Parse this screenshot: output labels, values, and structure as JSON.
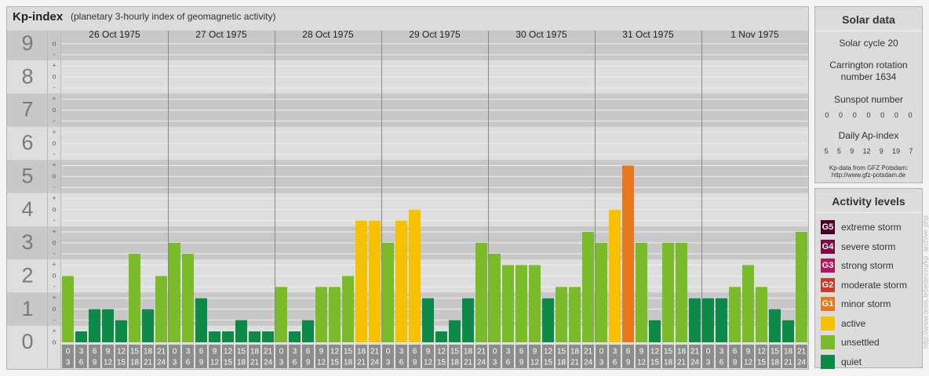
{
  "chart_data": {
    "type": "bar",
    "title": "Kp-index",
    "subtitle": "(planetary 3-hourly index of geomagnetic activity)",
    "ylim": [
      0,
      9.4
    ],
    "yticks": [
      0,
      1,
      2,
      3,
      4,
      5,
      6,
      7,
      8,
      9
    ],
    "yticks_minor": [
      {
        "value": 0,
        "label": "o"
      },
      {
        "value": 0.33,
        "label": "+"
      },
      {
        "value": 0.67,
        "label": "-"
      },
      {
        "value": 1,
        "label": "o"
      },
      {
        "value": 1.33,
        "label": "+"
      },
      {
        "value": 1.67,
        "label": "-"
      },
      {
        "value": 2,
        "label": "o"
      },
      {
        "value": 2.33,
        "label": "+"
      },
      {
        "value": 2.67,
        "label": "-"
      },
      {
        "value": 3,
        "label": "o"
      },
      {
        "value": 3.33,
        "label": "+"
      },
      {
        "value": 3.67,
        "label": "-"
      },
      {
        "value": 4,
        "label": "o"
      },
      {
        "value": 4.33,
        "label": "+"
      },
      {
        "value": 4.67,
        "label": "-"
      },
      {
        "value": 5,
        "label": "o"
      },
      {
        "value": 5.33,
        "label": "+"
      },
      {
        "value": 5.67,
        "label": "-"
      },
      {
        "value": 6,
        "label": "o"
      },
      {
        "value": 6.33,
        "label": "+"
      },
      {
        "value": 6.67,
        "label": "-"
      },
      {
        "value": 7,
        "label": "o"
      },
      {
        "value": 7.33,
        "label": "+"
      },
      {
        "value": 7.67,
        "label": "-"
      },
      {
        "value": 8,
        "label": "o"
      },
      {
        "value": 8.33,
        "label": "+"
      },
      {
        "value": 8.67,
        "label": "-"
      },
      {
        "value": 9,
        "label": "o"
      }
    ],
    "grid": true,
    "hours_from": [
      0,
      3,
      6,
      9,
      12,
      15,
      18,
      21
    ],
    "hours_to": [
      3,
      6,
      9,
      12,
      15,
      18,
      21,
      24
    ],
    "days": [
      {
        "date": "26 Oct 1975",
        "values": [
          2,
          0.33,
          1,
          1,
          0.67,
          2.67,
          1,
          2
        ],
        "colors": [
          "#79bb28",
          "#0e8a48",
          "#0e8a48",
          "#0e8a48",
          "#0e8a48",
          "#79bb28",
          "#0e8a48",
          "#79bb28"
        ]
      },
      {
        "date": "27 Oct 1975",
        "values": [
          3,
          2.67,
          1.33,
          0.33,
          0.33,
          0.67,
          0.33,
          0.33
        ],
        "colors": [
          "#79bb28",
          "#79bb28",
          "#0e8a48",
          "#0e8a48",
          "#0e8a48",
          "#0e8a48",
          "#0e8a48",
          "#0e8a48"
        ]
      },
      {
        "date": "28 Oct 1975",
        "values": [
          1.67,
          0.33,
          0.67,
          1.67,
          1.67,
          2,
          3.67,
          3.67
        ],
        "colors": [
          "#79bb28",
          "#0e8a48",
          "#0e8a48",
          "#79bb28",
          "#79bb28",
          "#79bb28",
          "#f6c200",
          "#f6c200"
        ]
      },
      {
        "date": "29 Oct 1975",
        "values": [
          3,
          3.67,
          4,
          1.33,
          0.33,
          0.67,
          1.33,
          3
        ],
        "colors": [
          "#79bb28",
          "#f6c200",
          "#f6c200",
          "#0e8a48",
          "#0e8a48",
          "#0e8a48",
          "#0e8a48",
          "#79bb28"
        ]
      },
      {
        "date": "30 Oct 1975",
        "values": [
          2.67,
          2.33,
          2.33,
          2.33,
          1.33,
          1.67,
          1.67,
          3.33
        ],
        "colors": [
          "#79bb28",
          "#79bb28",
          "#79bb28",
          "#79bb28",
          "#0e8a48",
          "#79bb28",
          "#79bb28",
          "#79bb28"
        ]
      },
      {
        "date": "31 Oct 1975",
        "values": [
          3,
          4,
          5.33,
          3,
          0.67,
          3,
          3,
          1.33
        ],
        "colors": [
          "#79bb28",
          "#f6c200",
          "#e8781c",
          "#79bb28",
          "#0e8a48",
          "#79bb28",
          "#79bb28",
          "#0e8a48"
        ]
      },
      {
        "date": "1 Nov 1975",
        "values": [
          1.33,
          1.33,
          1.67,
          2.33,
          1.67,
          1,
          0.67,
          3.33
        ],
        "colors": [
          "#0e8a48",
          "#0e8a48",
          "#79bb28",
          "#79bb28",
          "#79bb28",
          "#0e8a48",
          "#0e8a48",
          "#79bb28"
        ]
      }
    ],
    "watermark": "http://www.tesis.lebedev.ru/kp_archive.php"
  },
  "solar_data": {
    "title": "Solar data",
    "solar_cycle": "Solar cycle 20",
    "carrington_rotation": "Carrington rotation number 1634",
    "sunspot_title": "Sunspot number",
    "sunspot_numbers": [
      0,
      0,
      0,
      0,
      0,
      0,
      0
    ],
    "ap_title": "Daily Ap-index",
    "ap_index": [
      5,
      5,
      9,
      12,
      9,
      19,
      7
    ],
    "source": "Kp-data from GFZ Potsdam:",
    "source_url": "http://www.gfz-potsdam.de"
  },
  "activity_levels": {
    "title": "Activity levels",
    "items": [
      {
        "code": "G5",
        "name": "extreme storm",
        "color": "#4a0026"
      },
      {
        "code": "G4",
        "name": "severe storm",
        "color": "#7d0a44"
      },
      {
        "code": "G3",
        "name": "strong storm",
        "color": "#b3155c"
      },
      {
        "code": "G2",
        "name": "moderate storm",
        "color": "#cc3a20"
      },
      {
        "code": "G1",
        "name": "minor storm",
        "color": "#e8781c"
      },
      {
        "name": "active",
        "color": "#f6c200"
      },
      {
        "name": "unsettled",
        "color": "#79bb28"
      },
      {
        "name": "quiet",
        "color": "#0e8a48"
      }
    ]
  }
}
